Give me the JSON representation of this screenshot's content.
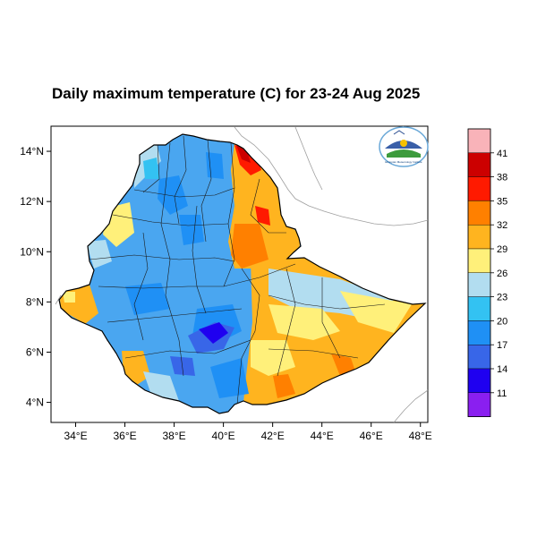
{
  "title": "Daily maximum temperature (C) for 23-24 Aug 2025",
  "map": {
    "region": "Ethiopia",
    "lat_ticks": [
      "4°N",
      "6°N",
      "8°N",
      "10°N",
      "12°N",
      "14°N"
    ],
    "lon_ticks": [
      "34°E",
      "36°E",
      "38°E",
      "40°E",
      "42°E",
      "44°E",
      "46°E",
      "48°E"
    ],
    "lat_range": [
      3.2,
      15.0
    ],
    "lon_range": [
      33.0,
      48.3
    ]
  },
  "colorbar": {
    "labels": [
      "41",
      "38",
      "35",
      "32",
      "29",
      "26",
      "23",
      "20",
      "17",
      "14",
      "11"
    ],
    "colors": [
      "#f9b3b9",
      "#cc0000",
      "#ff1a00",
      "#ff8000",
      "#ffb41f",
      "#fff07a",
      "#b2ddf0",
      "#33c2f2",
      "#1f90f5",
      "#3866e8",
      "#1f00f0",
      "#8a1ff0"
    ]
  },
  "logo": {
    "name": "Ethiopian Meteorology Institute emblem",
    "text": "Ethiopian Meteorology Institute"
  }
}
